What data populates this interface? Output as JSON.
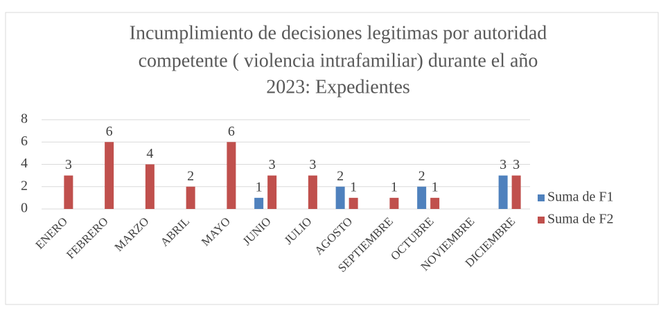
{
  "chart_data": {
    "type": "bar",
    "title": [
      "Incumplimiento de decisiones legitimas por autoridad",
      "competente ( violencia intrafamiliar) durante el año",
      "2023: Expedientes"
    ],
    "categories": [
      "ENERO",
      "FEBRERO",
      "MARZO",
      "ABRIL",
      "MAYO",
      "JUNIO",
      "JULIO",
      "AGOSTO",
      "SEPTIEMBRE",
      "OCTUBRE",
      "NOVIEMBRE",
      "DICIEMBRE"
    ],
    "series": [
      {
        "name": "Suma de F1",
        "color": "#4f81bd",
        "values": [
          null,
          null,
          null,
          null,
          null,
          1,
          null,
          2,
          null,
          2,
          null,
          3
        ]
      },
      {
        "name": "Suma de F2",
        "color": "#c0504d",
        "values": [
          3,
          6,
          4,
          2,
          6,
          3,
          3,
          1,
          1,
          1,
          null,
          3
        ]
      }
    ],
    "ylim": [
      0,
      8
    ],
    "yticks": [
      0,
      2,
      4,
      6,
      8
    ],
    "grid": true,
    "legend": "right"
  }
}
